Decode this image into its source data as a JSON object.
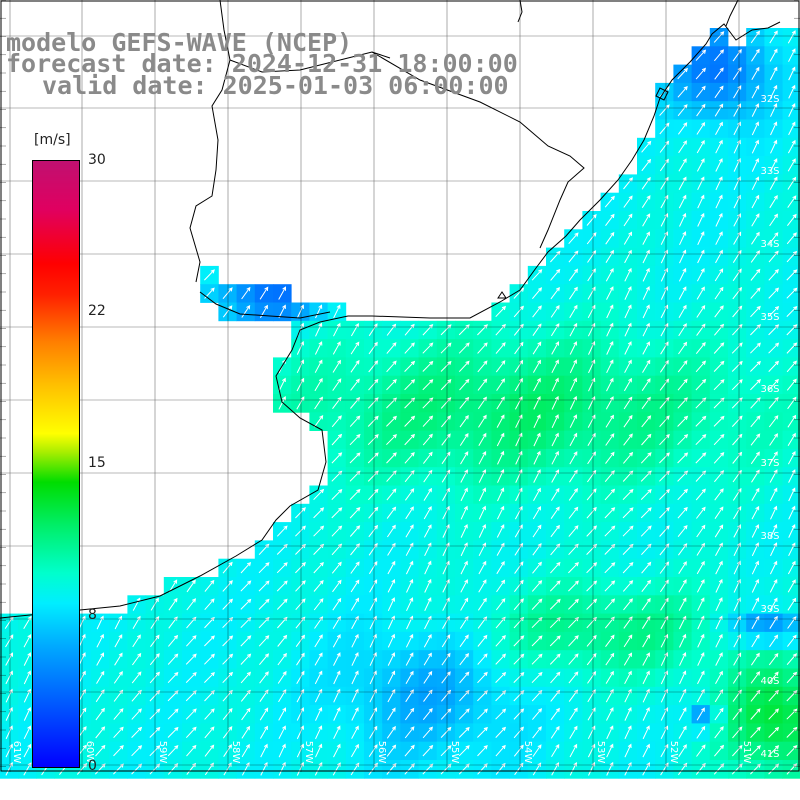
{
  "title": {
    "model": "modelo GEFS-WAVE (NCEP)",
    "forecast": "forecast date: 2024-12-31 18:00:00",
    "valid": "valid date: 2025-01-03 06:00:00"
  },
  "colorbar": {
    "unit": "[m/s]",
    "ticks": [
      "30",
      "22",
      "15",
      "8",
      "0"
    ],
    "tick_values": [
      30,
      22,
      15,
      8,
      0
    ],
    "min": 0,
    "max": 30
  },
  "map": {
    "lat_labels": [
      "32S",
      "33S",
      "34S",
      "35S",
      "36S",
      "37S",
      "38S",
      "39S",
      "40S",
      "41S"
    ],
    "lon_labels": [
      "61W",
      "60W",
      "59W",
      "58W",
      "57W",
      "56W",
      "55W",
      "54W",
      "53W",
      "52W",
      "51W"
    ],
    "land_color": "#ffffff",
    "grid_color": "#000000"
  }
}
